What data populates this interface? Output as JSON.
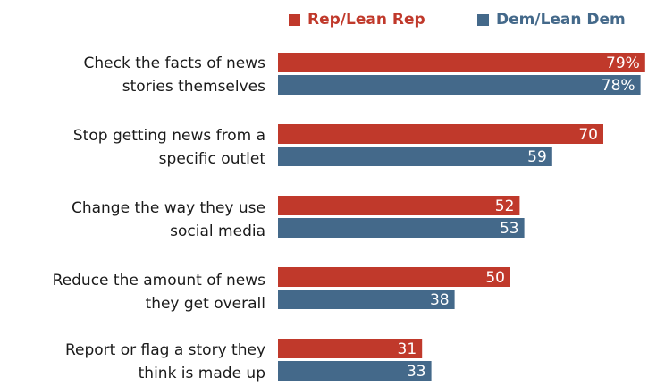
{
  "chart_data": {
    "type": "bar",
    "orientation": "horizontal",
    "categories": [
      [
        "Check the facts of news",
        "stories themselves"
      ],
      [
        "Stop getting news from a",
        "specific outlet"
      ],
      [
        "Change the way they use",
        "social media"
      ],
      [
        "Reduce the amount of news",
        "they get overall"
      ],
      [
        "Report or flag a story they",
        "think is made up"
      ]
    ],
    "series": [
      {
        "name": "Rep/Lean Rep",
        "color": "#c0392b",
        "values": [
          79,
          70,
          52,
          50,
          31
        ],
        "labels": [
          "79%",
          "70",
          "52",
          "50",
          "31"
        ]
      },
      {
        "name": "Dem/Lean Dem",
        "color": "#44698a",
        "values": [
          78,
          59,
          53,
          38,
          33
        ],
        "labels": [
          "78%",
          "59",
          "53",
          "38",
          "33"
        ]
      }
    ],
    "xlim": [
      0,
      100
    ],
    "grid": false,
    "legend_position": "top-right"
  }
}
